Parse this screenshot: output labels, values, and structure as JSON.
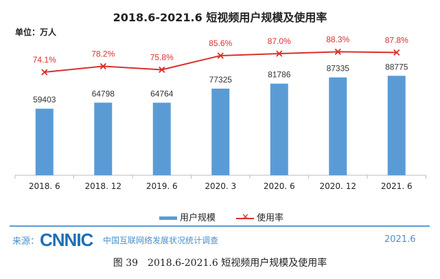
{
  "chart_data": {
    "type": "bar+line",
    "title": "2018.6-2021.6 短视频用户规模及使用率",
    "unit_label": "单位：万人",
    "categories": [
      "2018. 6",
      "2018. 12",
      "2019. 6",
      "2020. 3",
      "2020. 6",
      "2020. 12",
      "2021. 6"
    ],
    "series": [
      {
        "name": "用户规模",
        "type": "bar",
        "values": [
          59403,
          64798,
          64764,
          77325,
          81786,
          87335,
          88775
        ],
        "labels": [
          "59403",
          "64798",
          "64764",
          "77325",
          "81786",
          "87335",
          "88775"
        ],
        "color": "#5b9bd5"
      },
      {
        "name": "使用率",
        "type": "line",
        "values": [
          74.1,
          78.2,
          75.8,
          85.6,
          87.0,
          88.3,
          87.8
        ],
        "labels": [
          "74.1%",
          "78.2%",
          "75.8%",
          "85.6%",
          "87.0%",
          "88.3%",
          "87.8%"
        ],
        "color": "#d9302c",
        "marker": "x"
      }
    ],
    "legend_position": "bottom",
    "grid": false
  },
  "source": {
    "label": "来源：",
    "logo": "CNNIC",
    "survey": "中国互联网络发展状况统计调查",
    "date": "2021.6"
  },
  "caption": "图 39　2018.6-2021.6 短视频用户规模及使用率"
}
